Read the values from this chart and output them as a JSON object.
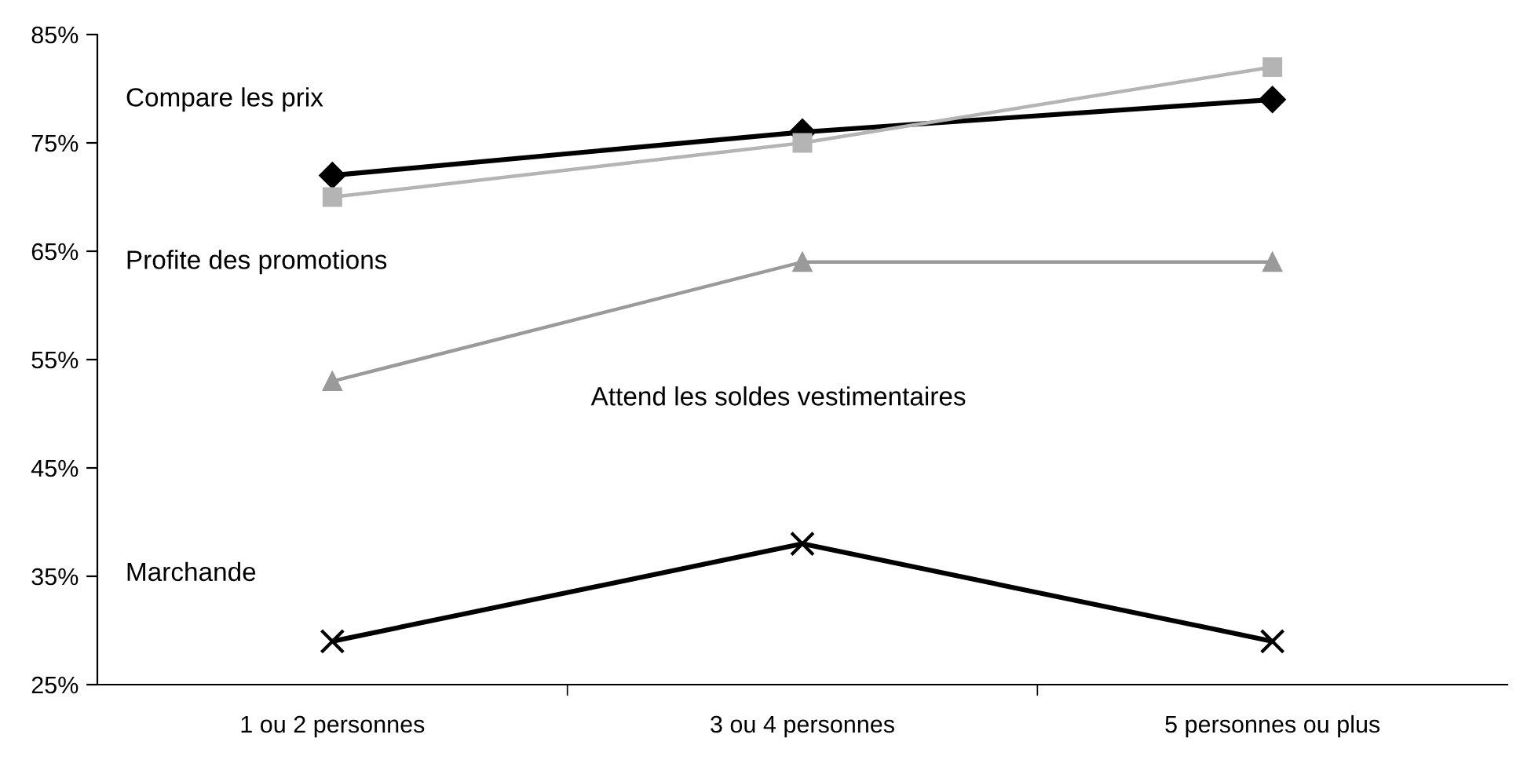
{
  "chart_data": {
    "type": "line",
    "categories": [
      "1 ou 2 personnes",
      "3 ou 4 personnes",
      "5 personnes ou plus"
    ],
    "series": [
      {
        "color": "#000000",
        "marker": "diamond",
        "values": [
          72,
          76,
          79
        ]
      },
      {
        "color": "#b4b4b4",
        "marker": "square",
        "values": [
          70,
          75,
          82
        ]
      },
      {
        "color": "#9a9a9a",
        "marker": "triangle",
        "values": [
          53,
          64,
          64
        ]
      },
      {
        "color": "#000000",
        "marker": "cross",
        "values": [
          29,
          38,
          29
        ]
      }
    ],
    "ylim": [
      25,
      85
    ],
    "yticks": [
      {
        "value": 25,
        "label": "25%"
      },
      {
        "value": 35,
        "label": "35%"
      },
      {
        "value": 45,
        "label": "45%"
      },
      {
        "value": 55,
        "label": "55%"
      },
      {
        "value": 65,
        "label": "65%"
      },
      {
        "value": 75,
        "label": "75%"
      },
      {
        "value": 85,
        "label": "85%"
      }
    ],
    "grid": false,
    "legend": false,
    "annotations": [
      "Compare les prix",
      "Profite des promotions",
      "Attend les soldes vestimentaires",
      "Marchande"
    ]
  }
}
